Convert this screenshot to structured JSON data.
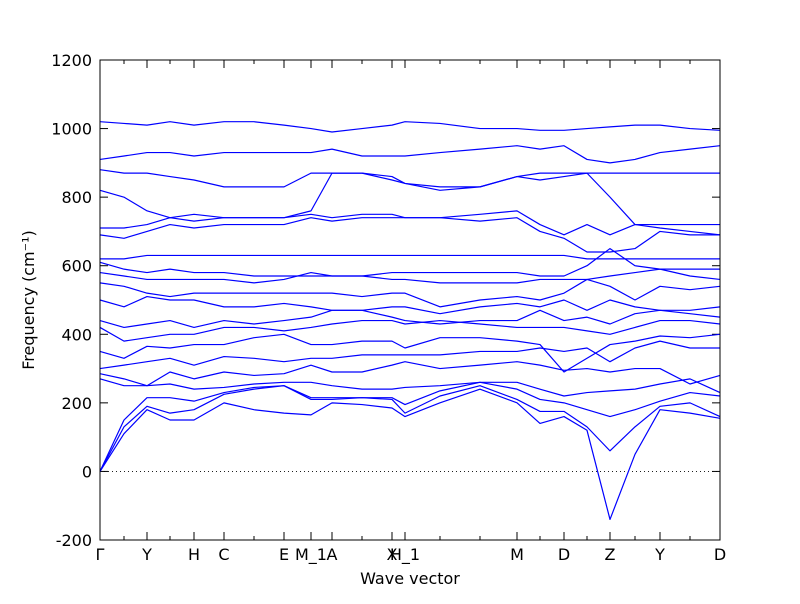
{
  "chart_data": {
    "type": "line",
    "xlabel": "Wave vector",
    "ylabel": "Frequency (cm⁻¹)",
    "color": "#0000ff",
    "zero_line": true,
    "xlim": [
      0,
      620
    ],
    "ylim": [
      -200,
      1200
    ],
    "yticks": [
      -200,
      0,
      200,
      400,
      600,
      800,
      1000,
      1200
    ],
    "xticks": [
      {
        "value": 0,
        "label": "Γ"
      },
      {
        "value": 47,
        "label": "Y"
      },
      {
        "value": 94,
        "label": "H"
      },
      {
        "value": 124,
        "label": "C"
      },
      {
        "value": 184,
        "label": "E"
      },
      {
        "value": 211,
        "label": "M_1"
      },
      {
        "value": 232,
        "label": "A"
      },
      {
        "value": 292,
        "label": "X"
      },
      {
        "value": 305,
        "label": "H_1"
      },
      {
        "value": 417,
        "label": "M"
      },
      {
        "value": 464,
        "label": "D"
      },
      {
        "value": 510,
        "label": "Z"
      },
      {
        "value": 560,
        "label": "Y"
      },
      {
        "value": 620,
        "label": "D"
      }
    ],
    "x": [
      0,
      24,
      47,
      70,
      94,
      124,
      154,
      184,
      211,
      232,
      262,
      292,
      305,
      340,
      380,
      417,
      440,
      464,
      487,
      510,
      535,
      560,
      590,
      620
    ],
    "series": [
      {
        "values": [
          0,
          110,
          180,
          150,
          150,
          200,
          180,
          170,
          165,
          200,
          195,
          185,
          160,
          200,
          240,
          200,
          140,
          160,
          120,
          -140,
          50,
          180,
          170,
          155
        ]
      },
      {
        "values": [
          0,
          130,
          190,
          170,
          180,
          225,
          240,
          250,
          210,
          210,
          215,
          210,
          170,
          220,
          250,
          210,
          175,
          175,
          130,
          60,
          130,
          190,
          200,
          160
        ]
      },
      {
        "values": [
          0,
          150,
          215,
          215,
          205,
          230,
          245,
          250,
          215,
          215,
          215,
          215,
          195,
          235,
          260,
          240,
          210,
          200,
          180,
          160,
          180,
          205,
          230,
          220
        ]
      },
      {
        "values": [
          270,
          250,
          250,
          255,
          240,
          245,
          255,
          260,
          260,
          250,
          240,
          240,
          245,
          250,
          260,
          260,
          240,
          220,
          230,
          235,
          240,
          255,
          270,
          230
        ]
      },
      {
        "values": [
          285,
          270,
          250,
          290,
          270,
          290,
          280,
          285,
          310,
          290,
          290,
          310,
          320,
          300,
          310,
          320,
          310,
          295,
          300,
          290,
          300,
          300,
          255,
          280
        ]
      },
      {
        "values": [
          300,
          310,
          320,
          330,
          310,
          335,
          330,
          320,
          330,
          330,
          340,
          340,
          340,
          340,
          350,
          350,
          360,
          350,
          360,
          320,
          360,
          380,
          360,
          360
        ]
      },
      {
        "values": [
          350,
          330,
          365,
          360,
          370,
          370,
          390,
          400,
          370,
          370,
          380,
          380,
          360,
          390,
          390,
          380,
          370,
          290,
          330,
          370,
          380,
          395,
          390,
          400
        ]
      },
      {
        "values": [
          420,
          380,
          390,
          400,
          400,
          420,
          420,
          410,
          420,
          430,
          440,
          440,
          430,
          440,
          430,
          420,
          420,
          420,
          410,
          400,
          420,
          440,
          440,
          430
        ]
      },
      {
        "values": [
          440,
          420,
          430,
          440,
          420,
          440,
          430,
          440,
          450,
          470,
          470,
          450,
          440,
          430,
          440,
          440,
          470,
          440,
          450,
          430,
          460,
          470,
          460,
          450
        ]
      },
      {
        "values": [
          500,
          480,
          510,
          500,
          500,
          480,
          480,
          490,
          480,
          470,
          470,
          480,
          480,
          460,
          480,
          490,
          480,
          500,
          470,
          500,
          480,
          470,
          470,
          480
        ]
      },
      {
        "values": [
          550,
          540,
          520,
          510,
          520,
          520,
          520,
          520,
          520,
          520,
          510,
          520,
          520,
          480,
          500,
          510,
          500,
          520,
          560,
          540,
          500,
          540,
          530,
          540
        ]
      },
      {
        "values": [
          580,
          570,
          560,
          560,
          560,
          560,
          550,
          560,
          580,
          570,
          570,
          560,
          560,
          550,
          550,
          550,
          560,
          560,
          560,
          570,
          580,
          590,
          570,
          560
        ]
      },
      {
        "values": [
          610,
          590,
          580,
          590,
          580,
          580,
          570,
          570,
          570,
          570,
          570,
          580,
          580,
          580,
          580,
          580,
          570,
          570,
          600,
          650,
          600,
          590,
          590,
          590
        ]
      },
      {
        "values": [
          620,
          620,
          630,
          630,
          630,
          630,
          630,
          630,
          630,
          630,
          630,
          630,
          630,
          630,
          630,
          630,
          630,
          630,
          620,
          620,
          620,
          620,
          620,
          620
        ]
      },
      {
        "values": [
          690,
          680,
          700,
          720,
          710,
          720,
          720,
          720,
          740,
          730,
          740,
          740,
          740,
          740,
          730,
          740,
          700,
          680,
          640,
          640,
          650,
          700,
          690,
          690
        ]
      },
      {
        "values": [
          710,
          710,
          720,
          740,
          730,
          740,
          740,
          740,
          750,
          740,
          750,
          750,
          740,
          740,
          750,
          760,
          720,
          690,
          720,
          690,
          720,
          720,
          720,
          720
        ]
      },
      {
        "values": [
          820,
          800,
          760,
          740,
          750,
          740,
          740,
          740,
          760,
          870,
          870,
          860,
          840,
          830,
          830,
          860,
          850,
          860,
          870,
          800,
          720,
          710,
          700,
          690
        ]
      },
      {
        "values": [
          880,
          870,
          870,
          860,
          850,
          830,
          830,
          830,
          870,
          870,
          870,
          850,
          840,
          820,
          830,
          860,
          870,
          870,
          870,
          870,
          870,
          870,
          870,
          870
        ]
      },
      {
        "values": [
          910,
          920,
          930,
          930,
          920,
          930,
          930,
          930,
          930,
          940,
          920,
          920,
          920,
          930,
          940,
          950,
          940,
          950,
          910,
          900,
          910,
          930,
          940,
          950
        ]
      },
      {
        "values": [
          1020,
          1015,
          1010,
          1020,
          1010,
          1020,
          1020,
          1010,
          1000,
          990,
          1000,
          1010,
          1020,
          1015,
          1000,
          1000,
          995,
          995,
          1000,
          1005,
          1010,
          1010,
          1000,
          995
        ]
      }
    ]
  }
}
